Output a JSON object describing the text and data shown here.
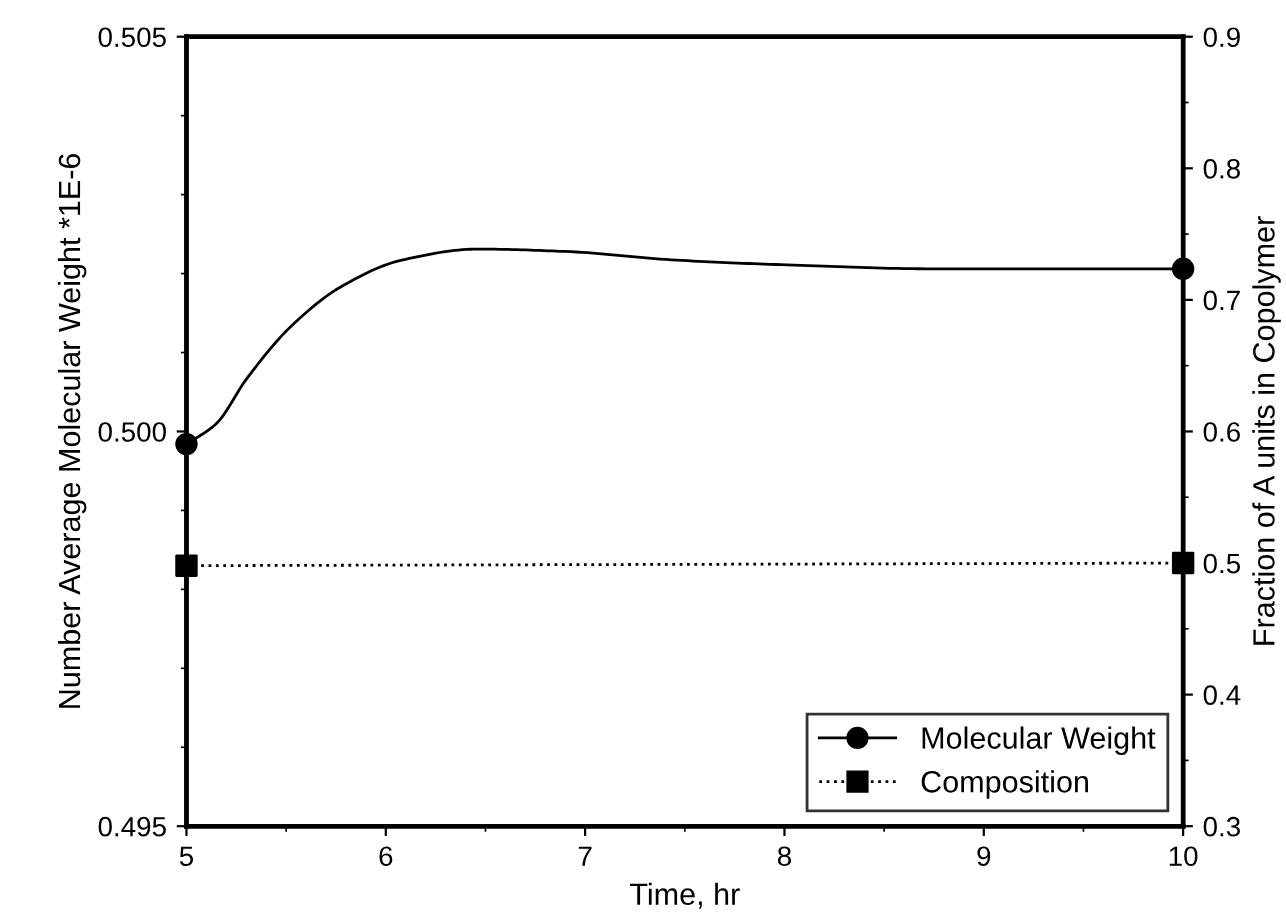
{
  "chart_data": {
    "type": "line",
    "xlabel": "Time, hr",
    "ylabel": "Number Average Molecular Weight *1E-6",
    "y2label": "Fraction of A units in Copolymer",
    "series": [
      {
        "name": "Molecular Weight",
        "color": "#000000",
        "marker": "none",
        "line_style": "solid",
        "x": [
          5,
          5.15,
          5.3,
          5.52,
          5.78,
          6.08,
          6.46,
          6.9,
          7.46,
          8.01,
          8.75,
          10
        ],
        "values": [
          0.49984,
          0.5001,
          0.50066,
          0.50132,
          0.50184,
          0.50217,
          0.50231,
          0.50228,
          0.50217,
          0.50211,
          0.50206,
          0.50206
        ]
      },
      {
        "type": "scatter",
        "color": "#000000",
        "marker": "circle",
        "x": [
          5,
          10
        ],
        "values": [
          0.49984,
          0.50206
        ]
      },
      {
        "name": "Composition",
        "color": "#000000",
        "marker": "none",
        "line_style": "dotted",
        "axis": "y2",
        "x": [
          5,
          10
        ],
        "values": [
          0.498,
          0.5
        ]
      },
      {
        "type": "scatter",
        "color": "#000000",
        "marker": "square",
        "axis": "y2",
        "x": [
          5,
          10
        ],
        "values": [
          0.498,
          0.5
        ]
      }
    ],
    "xlim": [
      5,
      10
    ],
    "xticks": [
      5,
      6,
      7,
      8,
      9,
      10
    ],
    "ylim": [
      0.495,
      0.505
    ],
    "yticks": [
      {
        "value": 0.495,
        "label": "0.495"
      },
      {
        "value": 0.5,
        "label": "0.500"
      },
      {
        "value": 0.505,
        "label": "0.505"
      }
    ],
    "y2lim": [
      0.3,
      0.9
    ],
    "y2ticks": [
      0.3,
      0.4,
      0.5,
      0.6,
      0.7,
      0.8,
      0.9
    ],
    "grid": false,
    "legend": "bottom right"
  }
}
